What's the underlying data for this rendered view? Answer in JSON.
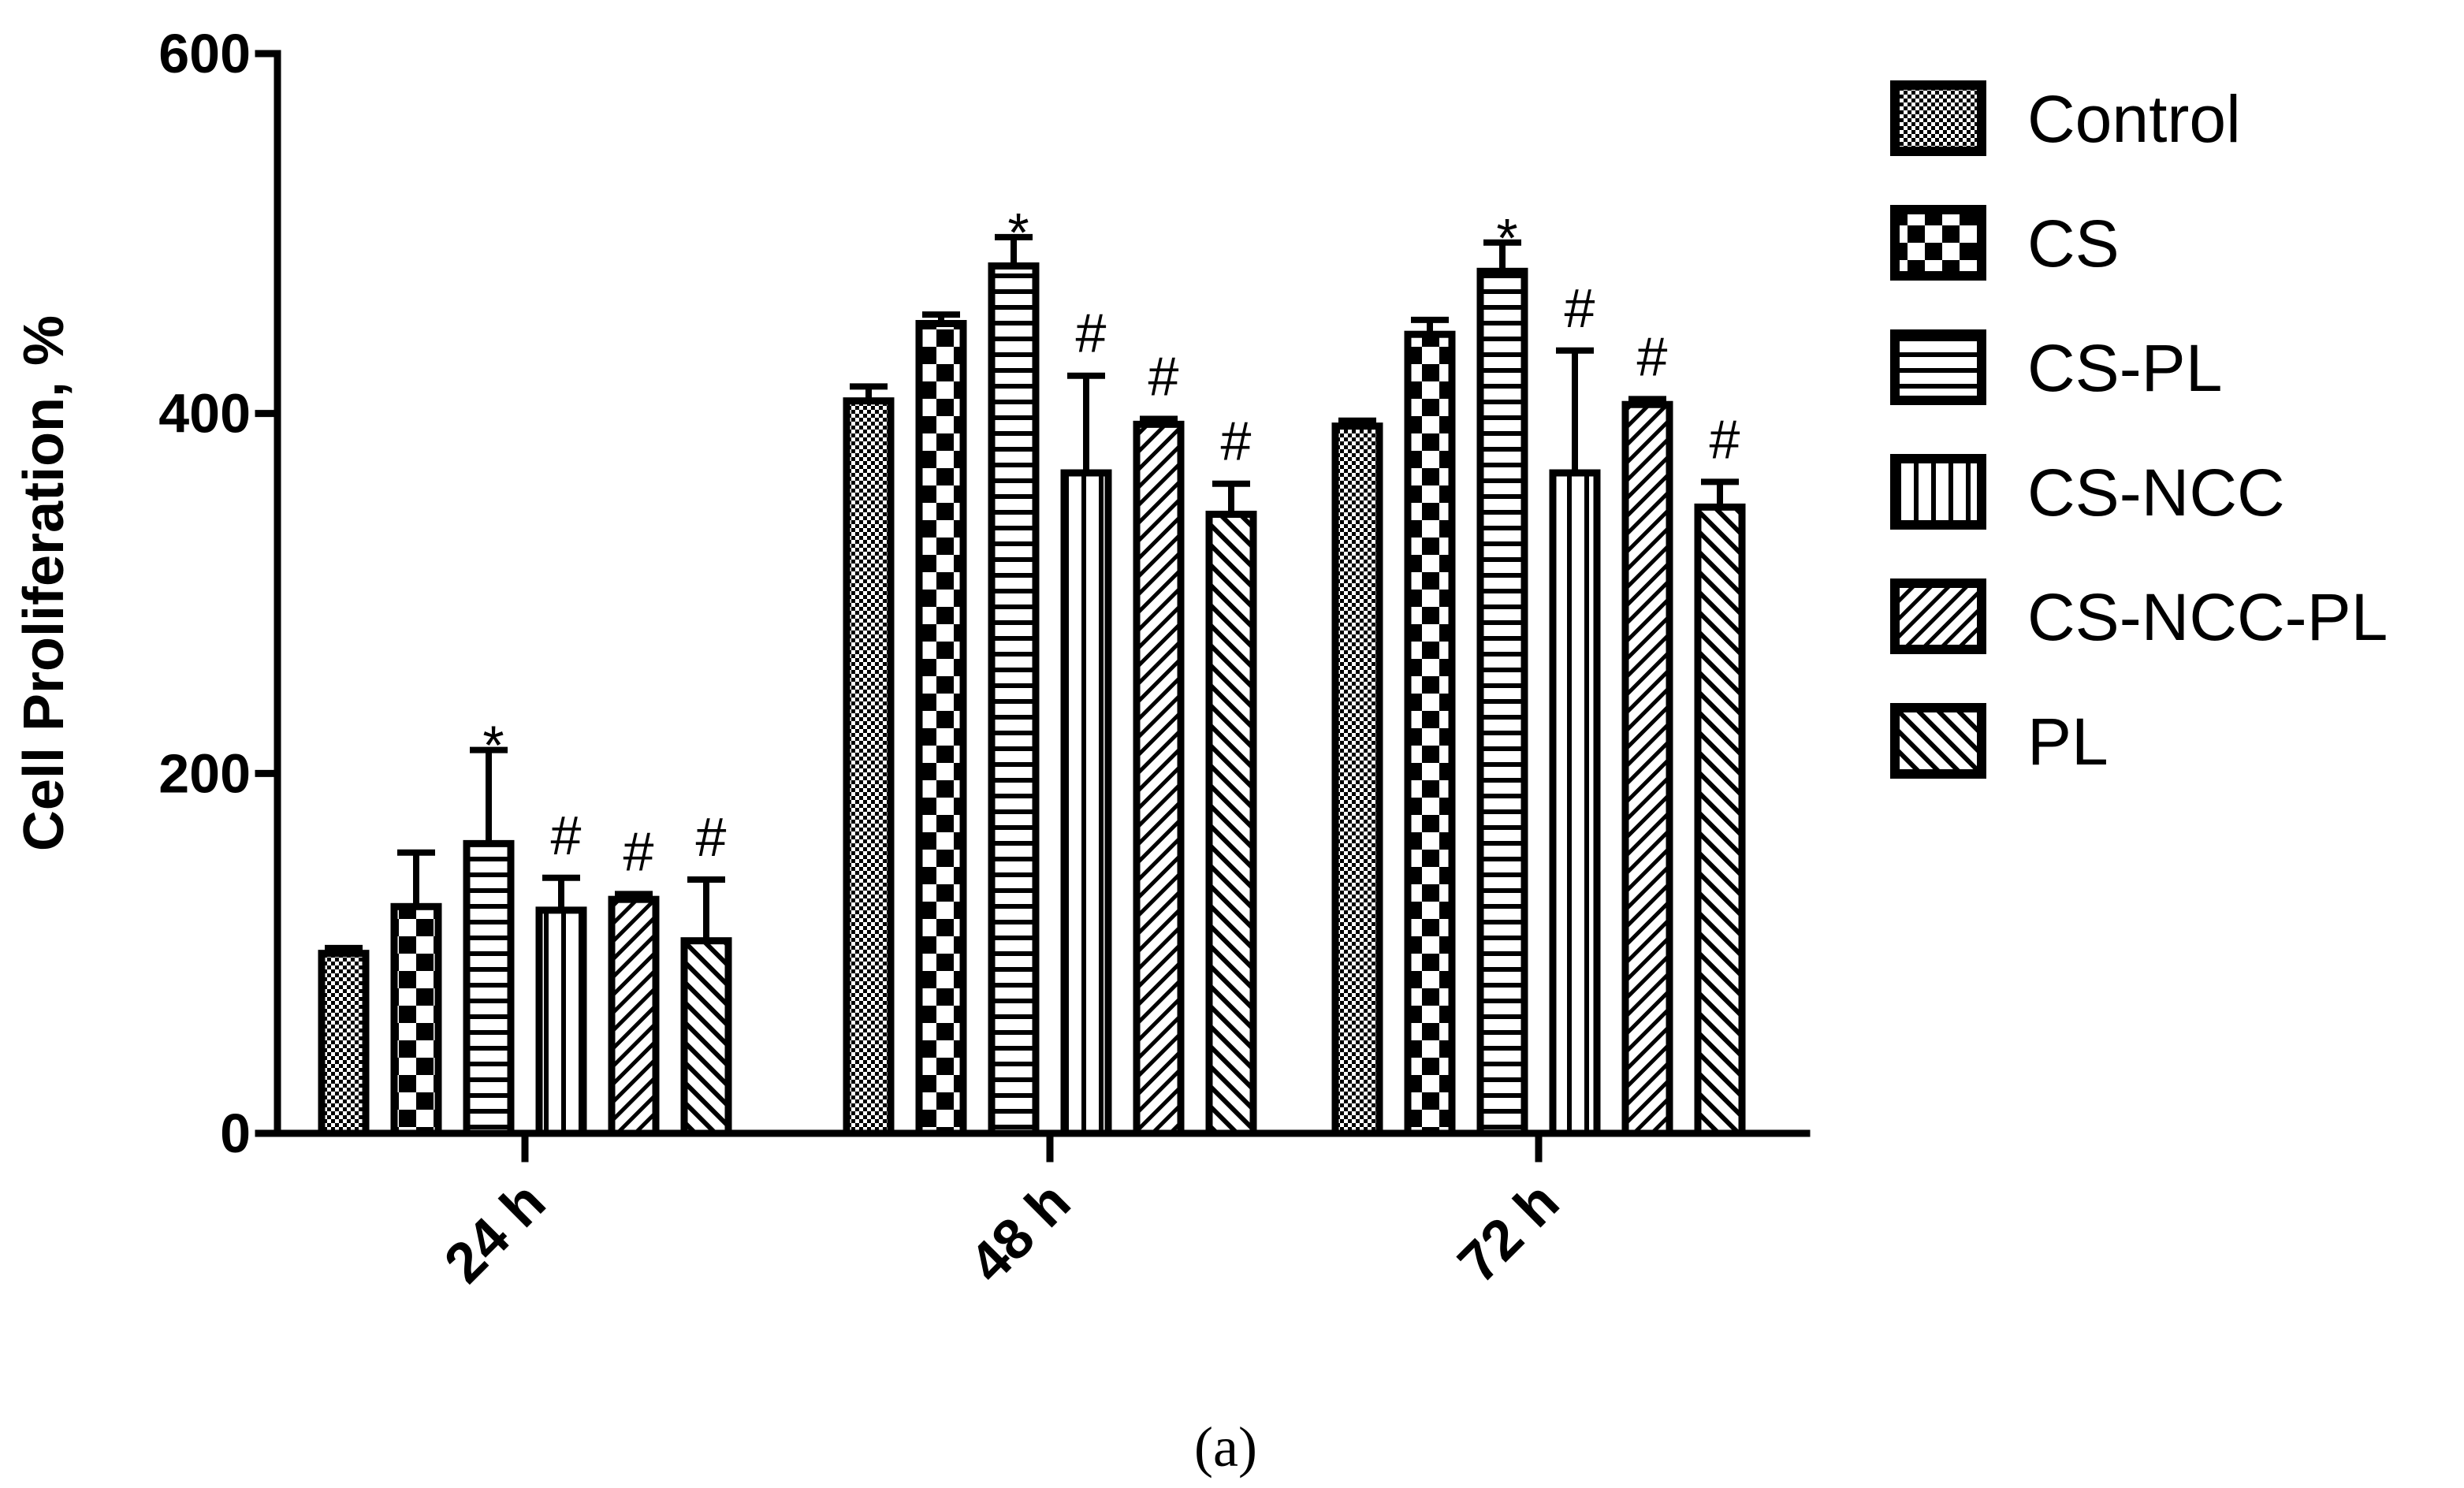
{
  "chart_data": {
    "type": "bar",
    "ylabel": "Cell Proliferation, %",
    "xlabel": "",
    "ylim": [
      0,
      600
    ],
    "yticks": [
      "0",
      "200",
      "400",
      "600"
    ],
    "categories": [
      "24 h",
      "48 h",
      "72 h"
    ],
    "series": [
      {
        "name": "Control",
        "values": [
          100,
          407,
          393
        ],
        "errors": [
          3,
          8,
          3
        ],
        "pattern": "dots",
        "markers": [
          "",
          "",
          ""
        ]
      },
      {
        "name": "CS",
        "values": [
          126,
          450,
          444
        ],
        "errors": [
          30,
          5,
          8
        ],
        "pattern": "checker",
        "markers": [
          "",
          "",
          ""
        ]
      },
      {
        "name": "CS-PL",
        "values": [
          161,
          482,
          479
        ],
        "errors": [
          52,
          16,
          16
        ],
        "pattern": "hlines",
        "markers": [
          "*",
          "*",
          "*"
        ]
      },
      {
        "name": "CS-NCC",
        "values": [
          124,
          367,
          367
        ],
        "errors": [
          18,
          54,
          68
        ],
        "pattern": "vlines",
        "markers": [
          "#",
          "#",
          "#"
        ]
      },
      {
        "name": "CS-NCC-PL",
        "values": [
          130,
          394,
          405
        ],
        "errors": [
          3,
          3,
          3
        ],
        "pattern": "diag",
        "markers": [
          "#",
          "#",
          "#"
        ]
      },
      {
        "name": "PL",
        "values": [
          107,
          344,
          348
        ],
        "errors": [
          34,
          17,
          14
        ],
        "pattern": "antidiag",
        "markers": [
          "#",
          "#",
          "#"
        ]
      }
    ],
    "grid": false,
    "legend": "right"
  },
  "caption": "(a)"
}
